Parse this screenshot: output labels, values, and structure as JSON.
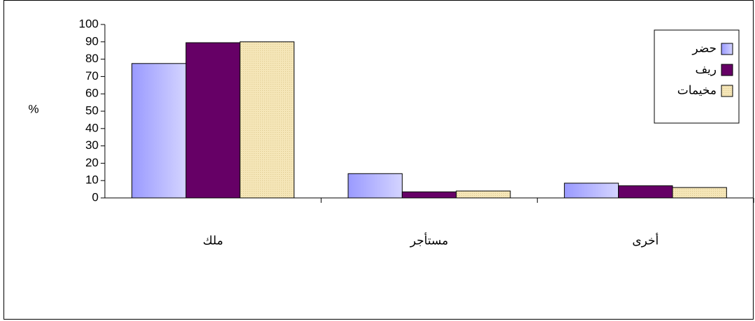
{
  "chart_data": {
    "type": "bar",
    "ylabel": "%",
    "ylim": [
      0,
      100
    ],
    "yticks": [
      0,
      10,
      20,
      30,
      40,
      50,
      60,
      70,
      80,
      90,
      100
    ],
    "categories": [
      "ملك",
      "مستأجر",
      "أخرى"
    ],
    "series": [
      {
        "name": "حضر",
        "values": [
          77.5,
          14.0,
          8.5
        ],
        "color": "#a8a8ff"
      },
      {
        "name": "ريف",
        "values": [
          89.5,
          3.5,
          7.0
        ],
        "color": "#660066"
      },
      {
        "name": "مخيمات",
        "values": [
          90.0,
          4.0,
          6.0
        ],
        "color": "#f3e3b5"
      }
    ],
    "grid": false,
    "legend_position": "top-right"
  }
}
